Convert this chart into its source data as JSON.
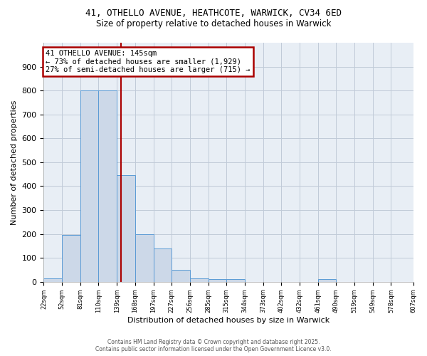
{
  "title_line1": "41, OTHELLO AVENUE, HEATHCOTE, WARWICK, CV34 6ED",
  "title_line2": "Size of property relative to detached houses in Warwick",
  "xlabel": "Distribution of detached houses by size in Warwick",
  "ylabel": "Number of detached properties",
  "bar_edges": [
    22,
    51,
    80,
    109,
    138,
    167,
    196,
    225,
    254,
    283,
    312,
    341,
    370,
    399,
    428,
    457,
    486,
    515,
    544,
    573,
    608
  ],
  "bar_heights": [
    15,
    195,
    800,
    800,
    445,
    200,
    140,
    50,
    15,
    10,
    10,
    0,
    0,
    0,
    0,
    10,
    0,
    0,
    0,
    0
  ],
  "tick_labels": [
    "22sqm",
    "52sqm",
    "81sqm",
    "110sqm",
    "139sqm",
    "168sqm",
    "197sqm",
    "227sqm",
    "256sqm",
    "285sqm",
    "315sqm",
    "344sqm",
    "373sqm",
    "402sqm",
    "432sqm",
    "461sqm",
    "490sqm",
    "519sqm",
    "549sqm",
    "578sqm",
    "607sqm"
  ],
  "property_size": 145,
  "property_name": "41 OTHELLO AVENUE: 145sqm",
  "annotation_line2": "← 73% of detached houses are smaller (1,929)",
  "annotation_line3": "27% of semi-detached houses are larger (715) →",
  "bar_color": "#ccd8e8",
  "bar_edge_color": "#5b9bd5",
  "line_color": "#aa0000",
  "annotation_box_color": "#aa0000",
  "plot_bg_color": "#e8eef5",
  "background_color": "#ffffff",
  "grid_color": "#c0cad8",
  "ylim": [
    0,
    1000
  ],
  "yticks": [
    0,
    100,
    200,
    300,
    400,
    500,
    600,
    700,
    800,
    900,
    1000
  ],
  "footer_line1": "Contains HM Land Registry data © Crown copyright and database right 2025.",
  "footer_line2": "Contains public sector information licensed under the Open Government Licence v3.0."
}
